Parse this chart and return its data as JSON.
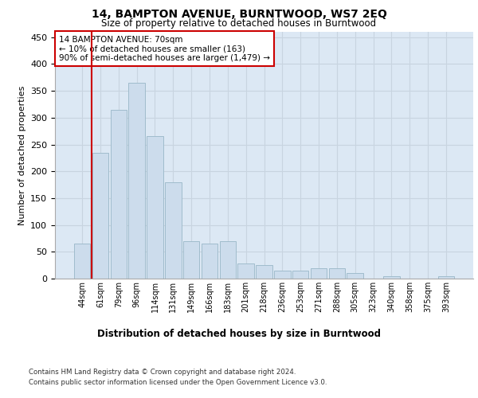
{
  "title": "14, BAMPTON AVENUE, BURNTWOOD, WS7 2EQ",
  "subtitle": "Size of property relative to detached houses in Burntwood",
  "xlabel": "Distribution of detached houses by size in Burntwood",
  "ylabel": "Number of detached properties",
  "categories": [
    "44sqm",
    "61sqm",
    "79sqm",
    "96sqm",
    "114sqm",
    "131sqm",
    "149sqm",
    "166sqm",
    "183sqm",
    "201sqm",
    "218sqm",
    "236sqm",
    "253sqm",
    "271sqm",
    "288sqm",
    "305sqm",
    "323sqm",
    "340sqm",
    "358sqm",
    "375sqm",
    "393sqm"
  ],
  "values": [
    65,
    235,
    315,
    365,
    265,
    180,
    70,
    65,
    70,
    28,
    25,
    15,
    15,
    20,
    20,
    10,
    0,
    5,
    0,
    0,
    5
  ],
  "bar_color": "#ccdcec",
  "bar_edge_color": "#a0bccc",
  "vline_x_index": 1,
  "vline_color": "#cc0000",
  "annotation_text": "14 BAMPTON AVENUE: 70sqm\n← 10% of detached houses are smaller (163)\n90% of semi-detached houses are larger (1,479) →",
  "annotation_box_color": "#ffffff",
  "annotation_box_edge_color": "#cc0000",
  "ylim": [
    0,
    460
  ],
  "yticks": [
    0,
    50,
    100,
    150,
    200,
    250,
    300,
    350,
    400,
    450
  ],
  "grid_color": "#c8d4e0",
  "background_color": "#dce8f4",
  "footer_line1": "Contains HM Land Registry data © Crown copyright and database right 2024.",
  "footer_line2": "Contains public sector information licensed under the Open Government Licence v3.0."
}
